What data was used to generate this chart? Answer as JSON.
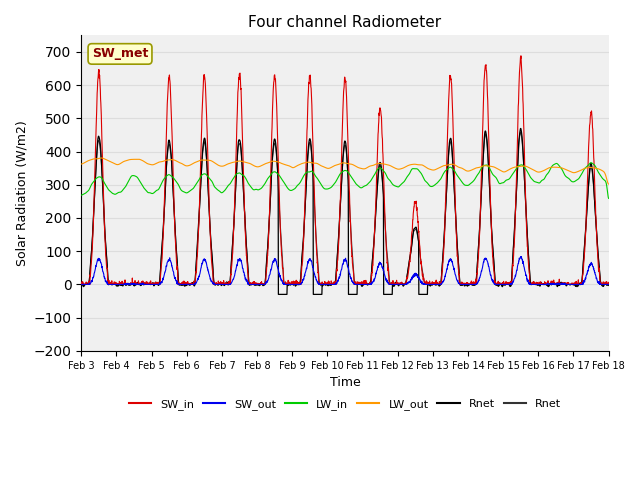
{
  "title": "Four channel Radiometer",
  "xlabel": "Time",
  "ylabel": "Solar Radiation (W/m2)",
  "xlim_start": 0,
  "xlim_end": 15,
  "ylim": [
    -200,
    750
  ],
  "yticks": [
    -200,
    -100,
    0,
    100,
    200,
    300,
    400,
    500,
    600,
    700
  ],
  "xtick_labels": [
    "Feb 3",
    "Feb 4",
    "Feb 5",
    "Feb 6",
    "Feb 7",
    "Feb 8",
    "Feb 9",
    "Feb 10",
    "Feb 11",
    "Feb 12",
    "Feb 13",
    "Feb 14",
    "Feb 15",
    "Feb 16",
    "Feb 17",
    "Feb 18"
  ],
  "annotation_text": "SW_met",
  "annotation_bg": "#ffffcc",
  "annotation_edge": "#999900",
  "colors": {
    "SW_in": "#dd0000",
    "SW_out": "#0000ee",
    "LW_in": "#00cc00",
    "LW_out": "#ff9900",
    "Rnet_black": "#000000",
    "Rnet_dark": "#333333"
  },
  "legend_labels": [
    "SW_in",
    "SW_out",
    "LW_in",
    "LW_out",
    "Rnet",
    "Rnet"
  ],
  "legend_colors": [
    "#dd0000",
    "#0000ee",
    "#00cc00",
    "#ff9900",
    "#000000",
    "#333333"
  ],
  "background_color": "#ffffff",
  "grid_color": "#dddddd"
}
